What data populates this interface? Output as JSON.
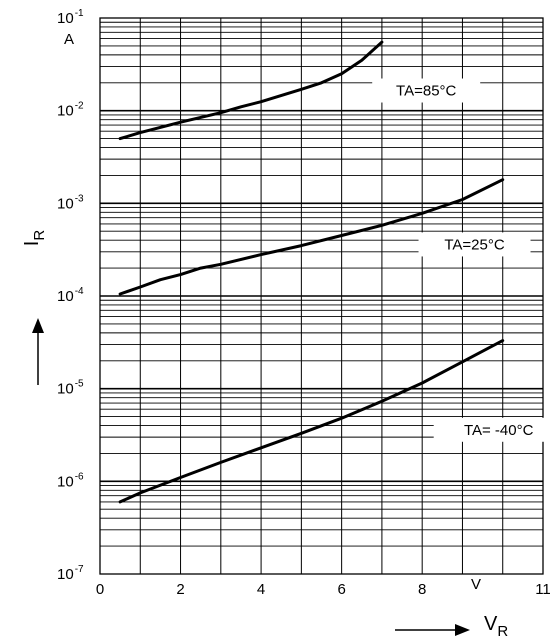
{
  "chart_data": {
    "type": "line",
    "xlabel": "V_R",
    "ylabel": "I_R",
    "xunit": "V",
    "yunit": "A",
    "xlim": [
      0,
      11
    ],
    "ylim": [
      1e-07,
      0.1
    ],
    "yscale": "log",
    "grid": true,
    "x_ticks": [
      {
        "value": 0,
        "label": "0"
      },
      {
        "value": 2,
        "label": "2"
      },
      {
        "value": 4,
        "label": "4"
      },
      {
        "value": 6,
        "label": "6"
      },
      {
        "value": 8,
        "label": "8"
      },
      {
        "value": 11,
        "label": "11"
      }
    ],
    "y_ticks": [
      {
        "value": 0.1,
        "base": "10",
        "exp": "-1"
      },
      {
        "value": 0.01,
        "base": "10",
        "exp": "-2"
      },
      {
        "value": 0.001,
        "base": "10",
        "exp": "-3"
      },
      {
        "value": 0.0001,
        "base": "10",
        "exp": "-4"
      },
      {
        "value": 1e-05,
        "base": "10",
        "exp": "-5"
      },
      {
        "value": 1e-06,
        "base": "10",
        "exp": "-6"
      },
      {
        "value": 1e-07,
        "base": "10",
        "exp": "-7"
      }
    ],
    "series": [
      {
        "name": "TA=85°C",
        "x": [
          0.5,
          1,
          2,
          3,
          3.5,
          4,
          5,
          5.5,
          6,
          6.5,
          7
        ],
        "y": [
          0.005,
          0.0058,
          0.0075,
          0.0095,
          0.011,
          0.0125,
          0.017,
          0.02,
          0.025,
          0.035,
          0.055
        ]
      },
      {
        "name": "TA=25°C",
        "x": [
          0.5,
          1,
          1.5,
          2,
          2.5,
          3,
          4,
          5,
          6,
          7,
          8,
          9,
          10
        ],
        "y": [
          0.000105,
          0.000125,
          0.00015,
          0.00017,
          0.0002,
          0.00022,
          0.00028,
          0.00035,
          0.00045,
          0.00058,
          0.00078,
          0.0011,
          0.0018
        ]
      },
      {
        "name": "TA= -40°C",
        "x": [
          0.5,
          1,
          2,
          3,
          4,
          5,
          6,
          7,
          8,
          9,
          10
        ],
        "y": [
          6e-07,
          7.5e-07,
          1.1e-06,
          1.6e-06,
          2.3e-06,
          3.3e-06,
          4.8e-06,
          7.3e-06,
          1.15e-05,
          1.95e-05,
          3.3e-05
        ]
      }
    ]
  }
}
